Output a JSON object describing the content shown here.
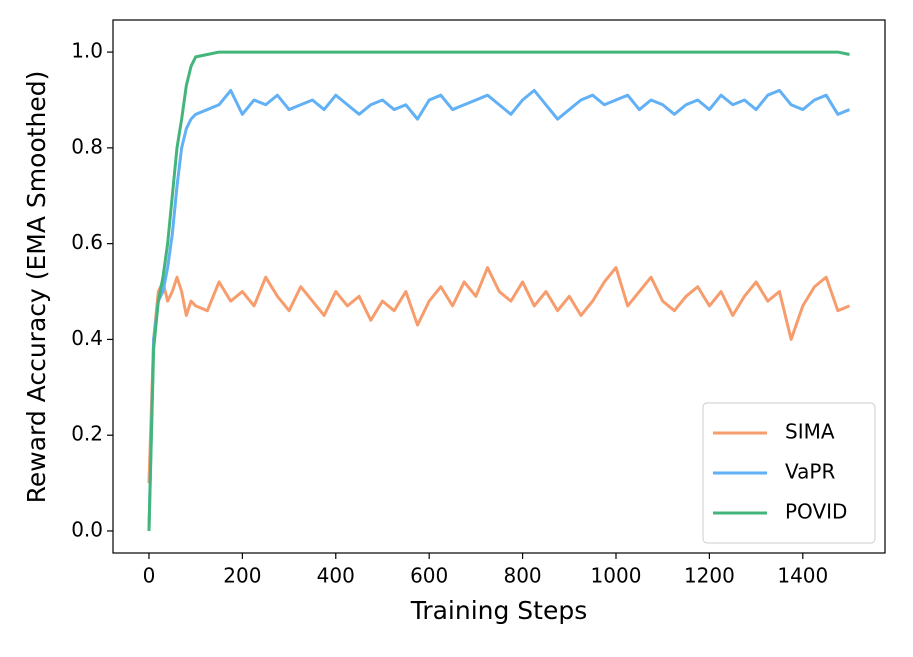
{
  "chart_data": {
    "type": "line",
    "xlabel": "Training Steps",
    "ylabel": "Reward Accuracy (EMA Smoothed)",
    "x": [
      0,
      10,
      20,
      30,
      40,
      50,
      60,
      70,
      80,
      90,
      100,
      125,
      150,
      175,
      200,
      225,
      250,
      275,
      300,
      325,
      350,
      375,
      400,
      425,
      450,
      475,
      500,
      525,
      550,
      575,
      600,
      625,
      650,
      675,
      700,
      725,
      750,
      775,
      800,
      825,
      850,
      875,
      900,
      925,
      950,
      975,
      1000,
      1025,
      1050,
      1075,
      1100,
      1125,
      1150,
      1175,
      1200,
      1225,
      1250,
      1275,
      1300,
      1325,
      1350,
      1375,
      1400,
      1425,
      1450,
      1475,
      1500
    ],
    "series": [
      {
        "name": "SIMA",
        "color": "#f79d6d",
        "values": [
          0.1,
          0.4,
          0.5,
          0.52,
          0.48,
          0.5,
          0.53,
          0.5,
          0.45,
          0.48,
          0.47,
          0.46,
          0.52,
          0.48,
          0.5,
          0.47,
          0.53,
          0.49,
          0.46,
          0.51,
          0.48,
          0.45,
          0.5,
          0.47,
          0.49,
          0.44,
          0.48,
          0.46,
          0.5,
          0.43,
          0.48,
          0.51,
          0.47,
          0.52,
          0.49,
          0.55,
          0.5,
          0.48,
          0.52,
          0.47,
          0.5,
          0.46,
          0.49,
          0.45,
          0.48,
          0.52,
          0.55,
          0.47,
          0.5,
          0.53,
          0.48,
          0.46,
          0.49,
          0.51,
          0.47,
          0.5,
          0.45,
          0.49,
          0.52,
          0.48,
          0.5,
          0.4,
          0.47,
          0.51,
          0.53,
          0.46,
          0.47
        ]
      },
      {
        "name": "VaPR",
        "color": "#62b0f5",
        "values": [
          0.0,
          0.4,
          0.48,
          0.5,
          0.55,
          0.62,
          0.72,
          0.8,
          0.84,
          0.86,
          0.87,
          0.88,
          0.89,
          0.92,
          0.87,
          0.9,
          0.89,
          0.91,
          0.88,
          0.89,
          0.9,
          0.88,
          0.91,
          0.89,
          0.87,
          0.89,
          0.9,
          0.88,
          0.89,
          0.86,
          0.9,
          0.91,
          0.88,
          0.89,
          0.9,
          0.91,
          0.89,
          0.87,
          0.9,
          0.92,
          0.89,
          0.86,
          0.88,
          0.9,
          0.91,
          0.89,
          0.9,
          0.91,
          0.88,
          0.9,
          0.89,
          0.87,
          0.89,
          0.9,
          0.88,
          0.91,
          0.89,
          0.9,
          0.88,
          0.91,
          0.92,
          0.89,
          0.88,
          0.9,
          0.91,
          0.87,
          0.88
        ]
      },
      {
        "name": "POVID",
        "color": "#43b57a",
        "values": [
          0.0,
          0.38,
          0.48,
          0.53,
          0.6,
          0.7,
          0.8,
          0.86,
          0.93,
          0.97,
          0.99,
          0.995,
          1.0,
          1.0,
          1.0,
          1.0,
          1.0,
          1.0,
          1.0,
          1.0,
          1.0,
          1.0,
          1.0,
          1.0,
          1.0,
          1.0,
          1.0,
          1.0,
          1.0,
          1.0,
          1.0,
          1.0,
          1.0,
          1.0,
          1.0,
          1.0,
          1.0,
          1.0,
          1.0,
          1.0,
          1.0,
          1.0,
          1.0,
          1.0,
          1.0,
          1.0,
          1.0,
          1.0,
          1.0,
          1.0,
          1.0,
          1.0,
          1.0,
          1.0,
          1.0,
          1.0,
          1.0,
          1.0,
          1.0,
          1.0,
          1.0,
          1.0,
          1.0,
          1.0,
          1.0,
          1.0,
          0.995
        ]
      }
    ],
    "xlim": [
      -77,
      1576
    ],
    "ylim": [
      -0.046,
      1.067
    ],
    "xticks": [
      0,
      200,
      400,
      600,
      800,
      1000,
      1200,
      1400
    ],
    "yticks": [
      {
        "value": 0,
        "label": "0.0"
      },
      {
        "value": 0.2,
        "label": "0.2"
      },
      {
        "value": 0.4,
        "label": "0.4"
      },
      {
        "value": 0.6,
        "label": "0.6"
      },
      {
        "value": 0.8,
        "label": "0.8"
      },
      {
        "value": 1,
        "label": "1.0"
      }
    ],
    "grid": false,
    "legend": "lower right"
  }
}
